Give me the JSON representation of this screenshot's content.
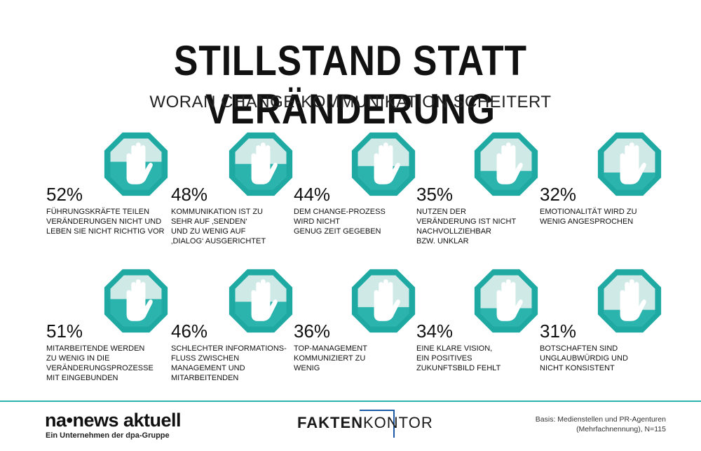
{
  "header": {
    "title": "STILLSTAND STATT VERÄNDERUNG",
    "subtitle": "WORAN CHANGE-KOMMUNIKATION SCHEITERT"
  },
  "colors": {
    "accent": "#2bb3ad",
    "light": "#cfe9e6",
    "stroke": "#1ea9a3"
  },
  "items": [
    {
      "percent_label": "52%",
      "value": 52,
      "lines": [
        "FÜHRUNGSKRÄFTE TEILEN",
        "VERÄNDERUNGEN NICHT UND",
        "LEBEN SIE NICHT RICHTIG VOR",
        ""
      ]
    },
    {
      "percent_label": "48%",
      "value": 48,
      "lines": [
        "KOMMUNIKATION IST ZU",
        "SEHR AUF ‚SENDEN‘",
        "UND ZU WENIG AUF",
        "‚DIALOG‘ AUSGERICHTET"
      ]
    },
    {
      "percent_label": "44%",
      "value": 44,
      "lines": [
        "DEM CHANGE-PROZESS",
        "WIRD NICHT",
        "GENUG ZEIT GEGEBEN",
        ""
      ]
    },
    {
      "percent_label": "35%",
      "value": 35,
      "lines": [
        "NUTZEN DER",
        "VERÄNDERUNG IST NICHT",
        "NACHVOLLZIEHBAR",
        "BZW. UNKLAR"
      ]
    },
    {
      "percent_label": "32%",
      "value": 32,
      "lines": [
        "EMOTIONALITÄT WIRD ZU",
        "WENIG ANGESPROCHEN",
        "",
        ""
      ]
    },
    {
      "percent_label": "51%",
      "value": 51,
      "lines": [
        "MITARBEITENDE WERDEN",
        "ZU WENIG IN DIE",
        "VERÄNDERUNGSPROZESSE",
        "MIT EINGEBUNDEN"
      ]
    },
    {
      "percent_label": "46%",
      "value": 46,
      "lines": [
        "SCHLECHTER INFORMATIONS-",
        "FLUSS ZWISCHEN",
        "MANAGEMENT UND",
        "MITARBEITENDEN"
      ]
    },
    {
      "percent_label": "36%",
      "value": 36,
      "lines": [
        "TOP-MANAGEMENT",
        "KOMMUNIZIERT ZU",
        "WENIG",
        ""
      ]
    },
    {
      "percent_label": "34%",
      "value": 34,
      "lines": [
        "EINE KLARE VISION,",
        "EIN POSITIVES",
        "ZUKUNFTSBILD FEHLT",
        ""
      ]
    },
    {
      "percent_label": "31%",
      "value": 31,
      "lines": [
        "BOTSCHAFTEN SIND",
        "UNGLAUBWÜRDIG UND",
        "NICHT KONSISTENT",
        ""
      ]
    }
  ],
  "footer": {
    "na_logo": "na•news aktuell",
    "na_sub": "Ein Unternehmen der dpa-Gruppe",
    "fk_logo_bold": "FAKTEN",
    "fk_logo_light": "KONTOR",
    "basis_line1": "Basis: Medienstellen und PR-Agenturen",
    "basis_line2": "(Mehrfachnennung), N=115"
  }
}
